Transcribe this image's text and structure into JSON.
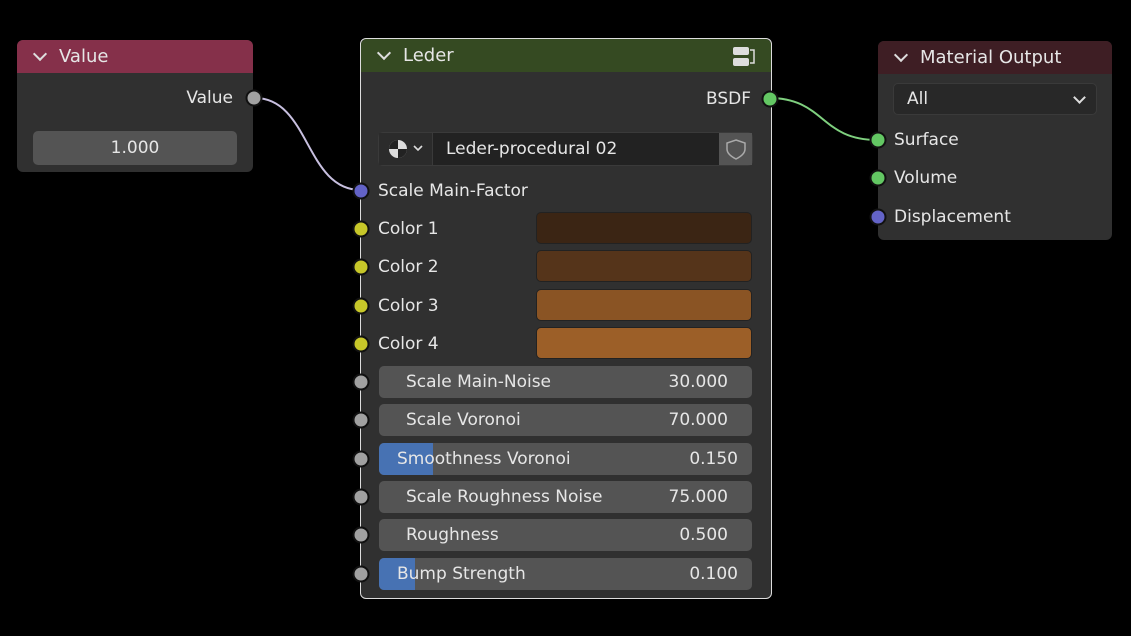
{
  "value_node": {
    "title": "Value",
    "header_color": "#85304a",
    "output_label": "Value",
    "value": "1.000"
  },
  "group_node": {
    "title": "Leder",
    "header_color": "#354a22",
    "output_label": "BSDF",
    "node_tree": "Leder-procedural 02",
    "icons": [
      "node-group-icon",
      "material-sphere-icon",
      "shield-icon"
    ],
    "inputs": [
      {
        "label": "Scale Main-Factor",
        "socket": "#6363c7"
      }
    ],
    "colors": [
      {
        "label": "Color 1",
        "swatch": "#3b2514"
      },
      {
        "label": "Color 2",
        "swatch": "#55341a"
      },
      {
        "label": "Color 3",
        "swatch": "#8a5424"
      },
      {
        "label": "Color 4",
        "swatch": "#9c5f28"
      }
    ],
    "fields": [
      {
        "label": "Scale Main-Noise",
        "value": "30.000",
        "slider": false
      },
      {
        "label": "Scale Voronoi",
        "value": "70.000",
        "slider": false
      },
      {
        "label": "Smoothness Voronoi",
        "value": "0.150",
        "slider": true,
        "fraction": 0.15
      },
      {
        "label": "Scale Roughness Noise",
        "value": "75.000",
        "slider": false
      },
      {
        "label": "Roughness",
        "value": "0.500",
        "slider": false
      },
      {
        "label": "Bump Strength",
        "value": "0.100",
        "slider": true,
        "fraction": 0.1
      }
    ]
  },
  "output_node": {
    "title": "Material Output",
    "header_color": "#3e1e24",
    "target": "All",
    "inputs": [
      {
        "label": "Surface",
        "socket": "#63c763"
      },
      {
        "label": "Volume",
        "socket": "#63c763"
      },
      {
        "label": "Displacement",
        "socket": "#6363c7"
      }
    ]
  }
}
